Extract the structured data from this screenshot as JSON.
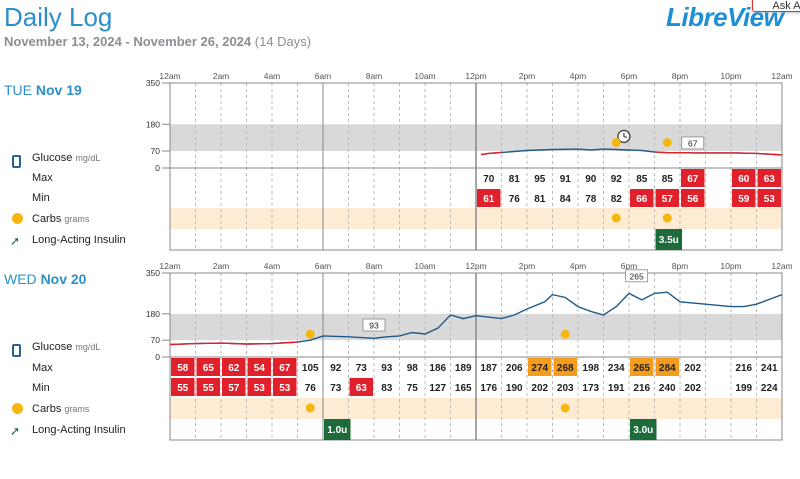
{
  "header": {
    "title": "Daily Log",
    "date_range": "November 13, 2024 - November 26, 2024",
    "days_count": "(14 Days)",
    "logo_text": "LibreView",
    "ask_button": "Ask AI"
  },
  "labels": {
    "glucose": "Glucose",
    "glucose_unit": "mg/dL",
    "max": "Max",
    "min": "Min",
    "carbs": "Carbs",
    "carbs_unit": "grams",
    "insulin": "Long-Acting Insulin"
  },
  "time_labels": [
    "12am",
    "2am",
    "4am",
    "6am",
    "8am",
    "10am",
    "12pm",
    "2pm",
    "4pm",
    "6pm",
    "8pm",
    "10pm",
    "12am"
  ],
  "y_ticks": [
    "350",
    "180",
    "70",
    "0"
  ],
  "colors": {
    "accent": "#2c8fc9",
    "low": "#e0202a",
    "high": "#f39c1e",
    "normal": "#ffffff",
    "target_band": "#d9d9d9",
    "carb_band": "#fdebd3",
    "insulin": "#1d6b3a",
    "curve": "#1f5a8a",
    "curve_low": "#e0202a"
  },
  "days": [
    {
      "dow": "TUE",
      "date": "Nov 19",
      "max": [
        "",
        "",
        "",
        "",
        "",
        "",
        "70",
        "81",
        "95",
        "91",
        "90",
        "92",
        "85",
        "85",
        "67",
        "",
        "60",
        "63"
      ],
      "min": [
        "",
        "",
        "",
        "",
        "",
        "",
        "61",
        "76",
        "81",
        "84",
        "78",
        "82",
        "66",
        "57",
        "56",
        "",
        "59",
        "53"
      ],
      "max_status": [
        "",
        "",
        "",
        "",
        "",
        "",
        "n",
        "n",
        "n",
        "n",
        "n",
        "n",
        "n",
        "n",
        "low",
        "",
        "low",
        "low"
      ],
      "min_status": [
        "",
        "",
        "",
        "",
        "",
        "",
        "low",
        "n",
        "n",
        "n",
        "n",
        "n",
        "low",
        "low",
        "low",
        "",
        "low",
        "low"
      ],
      "carbs_hours": [
        17.5,
        19.5
      ],
      "insulin": [
        {
          "hour": 19,
          "label": "3.5u"
        }
      ],
      "callouts": [
        {
          "hour": 20.5,
          "value": "67"
        }
      ],
      "clock_hour": 17.8
    },
    {
      "dow": "WED",
      "date": "Nov 20",
      "max": [
        "58",
        "65",
        "62",
        "54",
        "67",
        "105",
        "92",
        "73",
        "93",
        "98",
        "186",
        "189",
        "187",
        "206",
        "274",
        "268",
        "198",
        "234",
        "265",
        "284",
        "202",
        "",
        "216",
        "241"
      ],
      "min": [
        "55",
        "55",
        "57",
        "53",
        "53",
        "76",
        "73",
        "63",
        "83",
        "75",
        "127",
        "165",
        "176",
        "190",
        "202",
        "203",
        "173",
        "191",
        "216",
        "240",
        "202",
        "",
        "199",
        "224"
      ],
      "max_status": [
        "low",
        "low",
        "low",
        "low",
        "low",
        "n",
        "n",
        "n",
        "n",
        "n",
        "n",
        "n",
        "n",
        "n",
        "high",
        "high",
        "n",
        "n",
        "high",
        "high",
        "n",
        "",
        "n",
        "n"
      ],
      "min_status": [
        "low",
        "low",
        "low",
        "low",
        "low",
        "n",
        "n",
        "low",
        "n",
        "n",
        "n",
        "n",
        "n",
        "n",
        "n",
        "n",
        "n",
        "n",
        "n",
        "n",
        "n",
        "",
        "n",
        "n"
      ],
      "carbs_hours": [
        5.5,
        15.5
      ],
      "insulin": [
        {
          "hour": 6,
          "label": "1.0u"
        },
        {
          "hour": 18,
          "label": "3.0u"
        }
      ],
      "callouts": [
        {
          "hour": 8,
          "value": "93"
        },
        {
          "hour": 18.3,
          "value": "265"
        }
      ]
    }
  ],
  "glucose_curves": {
    "tue": [
      [
        12.2,
        55
      ],
      [
        12.5,
        60
      ],
      [
        13,
        64
      ],
      [
        14,
        72
      ],
      [
        15,
        76
      ],
      [
        16,
        78
      ],
      [
        16.5,
        74
      ],
      [
        17,
        78
      ],
      [
        17.5,
        76
      ],
      [
        18,
        74
      ],
      [
        18.5,
        72
      ],
      [
        19,
        66
      ],
      [
        19.5,
        63
      ],
      [
        20,
        63
      ],
      [
        20.6,
        62
      ],
      [
        22.2,
        62
      ],
      [
        23,
        60
      ],
      [
        24,
        54
      ]
    ],
    "wed": [
      [
        0,
        52
      ],
      [
        1,
        56
      ],
      [
        2,
        58
      ],
      [
        3,
        54
      ],
      [
        4,
        56
      ],
      [
        5,
        62
      ],
      [
        5.5,
        70
      ],
      [
        6,
        88
      ],
      [
        7,
        84
      ],
      [
        8,
        78
      ],
      [
        8.5,
        84
      ],
      [
        9,
        88
      ],
      [
        9.5,
        102
      ],
      [
        10,
        96
      ],
      [
        10.5,
        120
      ],
      [
        11,
        175
      ],
      [
        11.5,
        160
      ],
      [
        12,
        172
      ],
      [
        13,
        160
      ],
      [
        13.5,
        175
      ],
      [
        14,
        200
      ],
      [
        14.7,
        230
      ],
      [
        15,
        260
      ],
      [
        15.5,
        248
      ],
      [
        16,
        210
      ],
      [
        16.5,
        190
      ],
      [
        17,
        175
      ],
      [
        17.5,
        210
      ],
      [
        18,
        265
      ],
      [
        18.5,
        238
      ],
      [
        19,
        265
      ],
      [
        19.5,
        270
      ],
      [
        20,
        230
      ],
      [
        22,
        210
      ],
      [
        22.5,
        210
      ],
      [
        23,
        220
      ],
      [
        23.5,
        240
      ],
      [
        24,
        260
      ]
    ]
  }
}
